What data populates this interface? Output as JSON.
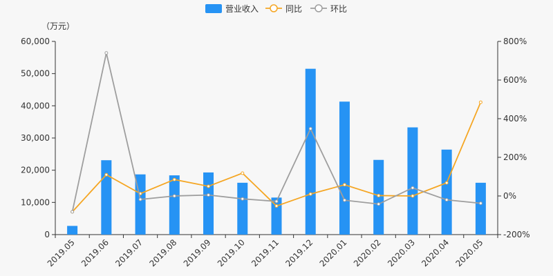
{
  "chart_data": {
    "type": "bar",
    "categories": [
      "2019.05",
      "2019.06",
      "2019.07",
      "2019.08",
      "2019.09",
      "2019.10",
      "2019.11",
      "2019.12",
      "2020.01",
      "2020.02",
      "2020.03",
      "2020.04",
      "2020.05"
    ],
    "y_left_unit": "（万元）",
    "y_left_ticks": [
      "0",
      "10,000",
      "20,000",
      "30,000",
      "40,000",
      "50,000",
      "60,000"
    ],
    "y_left_range": [
      0,
      60000
    ],
    "y_right_ticks": [
      "-200%",
      "0%",
      "200%",
      "400%",
      "600%",
      "800%"
    ],
    "y_right_range": [
      -200,
      800
    ],
    "legend_position": "top-center",
    "series": [
      {
        "name": "营业收入",
        "type": "bar",
        "axis": "left",
        "color": "#2693f4",
        "values": [
          2700,
          23100,
          18700,
          18400,
          19300,
          16100,
          11500,
          51500,
          41300,
          23200,
          33300,
          26400,
          16100
        ]
      },
      {
        "name": "同比",
        "type": "line",
        "axis": "right",
        "color": "#f5a623",
        "values": [
          -82,
          110,
          12,
          85,
          50,
          118,
          -52,
          10,
          58,
          2,
          0,
          68,
          485
        ]
      },
      {
        "name": "环比",
        "type": "line",
        "axis": "right",
        "color": "#9e9e9e",
        "values": [
          -82,
          740,
          -18,
          0,
          5,
          -15,
          -28,
          348,
          -22,
          -42,
          42,
          -20,
          -38
        ]
      }
    ]
  }
}
